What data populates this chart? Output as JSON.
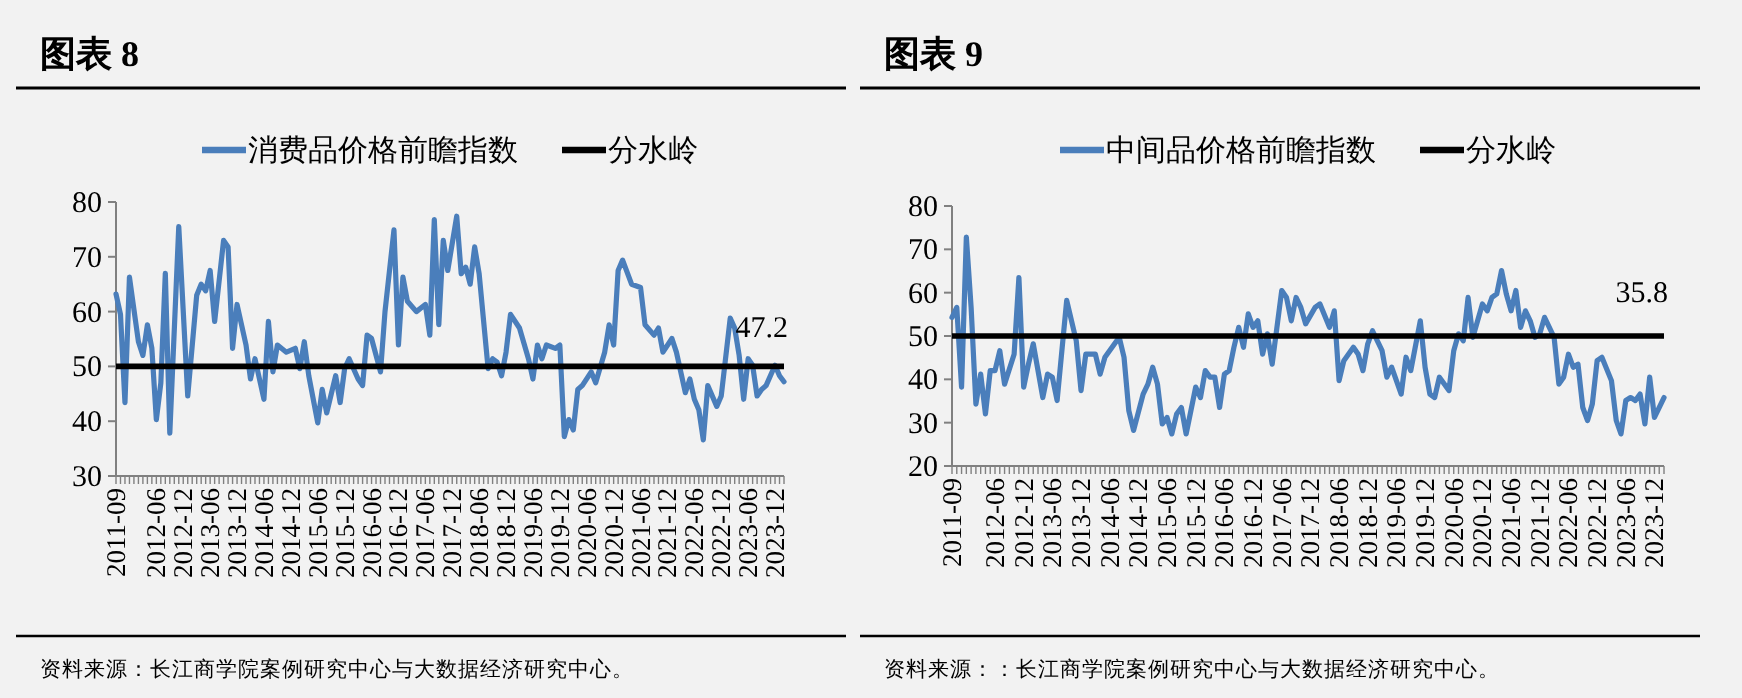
{
  "chart_data": [
    {
      "type": "line",
      "title": "图表 8",
      "legend": "top",
      "grid": false,
      "marker": "none",
      "line_style": "solid",
      "xlim": [
        "2011-09",
        "2024-02"
      ],
      "ylim": [
        30,
        80
      ],
      "yticks": [
        30,
        40,
        50,
        60,
        70,
        80
      ],
      "xticks": [
        {
          "value": "2011-09",
          "label": "2011-09"
        },
        {
          "value": "2012-06",
          "label": "2012-06"
        },
        {
          "value": "2012-12",
          "label": "2012-12"
        },
        {
          "value": "2013-06",
          "label": "2013-06"
        },
        {
          "value": "2013-12",
          "label": "2013-12"
        },
        {
          "value": "2014-06",
          "label": "2014-06"
        },
        {
          "value": "2014-12",
          "label": "2014-12"
        },
        {
          "value": "2015-06",
          "label": "2015-06"
        },
        {
          "value": "2015-12",
          "label": "2015-12"
        },
        {
          "value": "2016-06",
          "label": "2016-06"
        },
        {
          "value": "2016-12",
          "label": "2016-12"
        },
        {
          "value": "2017-06",
          "label": "2017-06"
        },
        {
          "value": "2017-12",
          "label": "2017-12"
        },
        {
          "value": "2018-06",
          "label": "2018-06"
        },
        {
          "value": "2018-12",
          "label": "2018-12"
        },
        {
          "value": "2019-06",
          "label": "2019-06"
        },
        {
          "value": "2019-12",
          "label": "2019-12"
        },
        {
          "value": "2020-06",
          "label": "2020-06"
        },
        {
          "value": "2020-12",
          "label": "2020-12"
        },
        {
          "value": "2021-06",
          "label": "2021-06"
        },
        {
          "value": "2021-12",
          "label": "2021-12"
        },
        {
          "value": "2022-06",
          "label": "2022-06"
        },
        {
          "value": "2022-12",
          "label": "2022-12"
        },
        {
          "value": "2023-06",
          "label": "2023-06"
        },
        {
          "value": "2023-12",
          "label": "2023-12"
        }
      ],
      "series": [
        {
          "name": "消费品价格前瞻指数",
          "color": "#4a7ebb",
          "x": [
            "2011-09",
            "2011-10",
            "2011-11",
            "2011-12",
            "2012-02",
            "2012-03",
            "2012-04",
            "2012-05",
            "2012-06",
            "2012-07",
            "2012-08",
            "2012-09",
            "2012-11",
            "2013-01",
            "2013-03",
            "2013-04",
            "2013-05",
            "2013-06",
            "2013-07",
            "2013-09",
            "2013-10",
            "2013-11",
            "2013-12",
            "2014-02",
            "2014-03",
            "2014-04",
            "2014-06",
            "2014-07",
            "2014-08",
            "2014-09",
            "2014-11",
            "2015-01",
            "2015-02",
            "2015-03",
            "2015-04",
            "2015-06",
            "2015-07",
            "2015-08",
            "2015-10",
            "2015-11",
            "2015-12",
            "2016-01",
            "2016-03",
            "2016-04",
            "2016-05",
            "2016-06",
            "2016-08",
            "2016-09",
            "2016-11",
            "2016-12",
            "2017-01",
            "2017-02",
            "2017-04",
            "2017-06",
            "2017-07",
            "2017-08",
            "2017-09",
            "2017-10",
            "2017-11",
            "2018-01",
            "2018-02",
            "2018-03",
            "2018-04",
            "2018-05",
            "2018-06",
            "2018-08",
            "2018-09",
            "2018-10",
            "2018-11",
            "2018-12",
            "2019-01",
            "2019-03",
            "2019-05",
            "2019-06",
            "2019-07",
            "2019-08",
            "2019-09",
            "2019-11",
            "2019-12",
            "2020-01",
            "2020-02",
            "2020-03",
            "2020-04",
            "2020-05",
            "2020-07",
            "2020-08",
            "2020-10",
            "2020-11",
            "2020-12",
            "2021-01",
            "2021-02",
            "2021-04",
            "2021-06",
            "2021-07",
            "2021-09",
            "2021-10",
            "2021-11",
            "2022-01",
            "2022-02",
            "2022-04",
            "2022-05",
            "2022-06",
            "2022-07",
            "2022-08",
            "2022-09",
            "2022-11",
            "2022-12",
            "2023-02",
            "2023-03",
            "2023-04",
            "2023-05",
            "2023-06",
            "2023-07",
            "2023-08",
            "2023-09",
            "2023-10",
            "2023-12",
            "2024-01",
            "2024-02"
          ],
          "values": [
            63.2,
            59.5,
            43.4,
            66.3,
            54.5,
            52,
            57.6,
            53.3,
            40.3,
            47,
            67,
            37.8,
            75.5,
            44.6,
            63,
            65,
            63.8,
            67.5,
            58.2,
            73,
            71.8,
            53.3,
            61.3,
            53.9,
            47.7,
            51.4,
            44,
            58.2,
            49,
            53.9,
            52.6,
            53.3,
            49.6,
            54.5,
            48.3,
            39.7,
            45.8,
            41.5,
            48.3,
            43.4,
            49.6,
            51.4,
            47.7,
            46.5,
            55.7,
            55.1,
            49,
            60,
            74.9,
            53.9,
            66.3,
            61.9,
            60,
            61.3,
            55.7,
            76.8,
            57.6,
            73,
            67.5,
            77.4,
            66.9,
            68.1,
            65,
            71.8,
            66.9,
            49.6,
            51.4,
            50.8,
            48.3,
            52.6,
            59.5,
            57,
            51.4,
            47.7,
            53.9,
            51.4,
            53.9,
            53.3,
            53.9,
            37.2,
            40.3,
            38.4,
            45.8,
            46.5,
            49,
            47,
            52.6,
            57.6,
            53.9,
            67.5,
            69.4,
            65,
            64.4,
            57.6,
            55.7,
            57,
            52.6,
            55.1,
            52.6,
            45.2,
            47.7,
            44,
            42.1,
            36.6,
            46.5,
            42.7,
            44.6,
            58.8,
            57,
            52,
            44,
            51.4,
            50.2,
            44.6,
            45.8,
            46.5,
            50.2,
            48.3,
            47.2
          ]
        }
      ],
      "ref_lines": [
        {
          "axis": "y",
          "value": 50,
          "label": "分水岭",
          "color": "#000000"
        }
      ],
      "annotations": [
        {
          "text": "47.2",
          "x": "2024-02",
          "y": 47.2
        },
        "资料来源：长江商学院案例研究中心与大数据经济研究中心。"
      ]
    },
    {
      "type": "line",
      "title": "图表 9",
      "legend": "top",
      "grid": false,
      "marker": "none",
      "line_style": "solid",
      "xlim": [
        "2011-09",
        "2024-02"
      ],
      "ylim": [
        20,
        80
      ],
      "yticks": [
        20,
        30,
        40,
        50,
        60,
        70,
        80
      ],
      "xticks": [
        {
          "value": "2011-09",
          "label": "2011-09"
        },
        {
          "value": "2012-06",
          "label": "2012-06"
        },
        {
          "value": "2012-12",
          "label": "2012-12"
        },
        {
          "value": "2013-06",
          "label": "2013-06"
        },
        {
          "value": "2013-12",
          "label": "2013-12"
        },
        {
          "value": "2014-06",
          "label": "2014-06"
        },
        {
          "value": "2014-12",
          "label": "2014-12"
        },
        {
          "value": "2015-06",
          "label": "2015-06"
        },
        {
          "value": "2015-12",
          "label": "2015-12"
        },
        {
          "value": "2016-06",
          "label": "2016-06"
        },
        {
          "value": "2016-12",
          "label": "2016-12"
        },
        {
          "value": "2017-06",
          "label": "2017-06"
        },
        {
          "value": "2017-12",
          "label": "2017-12"
        },
        {
          "value": "2018-06",
          "label": "2018-06"
        },
        {
          "value": "2018-12",
          "label": "2018-12"
        },
        {
          "value": "2019-06",
          "label": "2019-06"
        },
        {
          "value": "2019-12",
          "label": "2019-12"
        },
        {
          "value": "2020-06",
          "label": "2020-06"
        },
        {
          "value": "2020-12",
          "label": "2020-12"
        },
        {
          "value": "2021-06",
          "label": "2021-06"
        },
        {
          "value": "2021-12",
          "label": "2021-12"
        },
        {
          "value": "2022-06",
          "label": "2022-06"
        },
        {
          "value": "2022-12",
          "label": "2022-12"
        },
        {
          "value": "2023-06",
          "label": "2023-06"
        },
        {
          "value": "2023-12",
          "label": "2023-12"
        }
      ],
      "series": [
        {
          "name": "中间品价格前瞻指数",
          "color": "#4a7ebb",
          "x": [
            "2011-09",
            "2011-10",
            "2011-11",
            "2011-12",
            "2012-01",
            "2012-02",
            "2012-03",
            "2012-04",
            "2012-05",
            "2012-06",
            "2012-07",
            "2012-08",
            "2012-10",
            "2012-11",
            "2012-12",
            "2013-01",
            "2013-02",
            "2013-04",
            "2013-05",
            "2013-06",
            "2013-07",
            "2013-09",
            "2013-11",
            "2013-12",
            "2014-01",
            "2014-03",
            "2014-04",
            "2014-05",
            "2014-08",
            "2014-09",
            "2014-10",
            "2014-11",
            "2015-01",
            "2015-02",
            "2015-03",
            "2015-04",
            "2015-05",
            "2015-06",
            "2015-07",
            "2015-08",
            "2015-09",
            "2015-10",
            "2015-12",
            "2016-01",
            "2016-02",
            "2016-03",
            "2016-04",
            "2016-05",
            "2016-06",
            "2016-07",
            "2016-08",
            "2016-09",
            "2016-10",
            "2016-11",
            "2016-12",
            "2017-01",
            "2017-02",
            "2017-03",
            "2017-04",
            "2017-06",
            "2017-07",
            "2017-08",
            "2017-09",
            "2017-10",
            "2017-11",
            "2018-01",
            "2018-02",
            "2018-04",
            "2018-05",
            "2018-06",
            "2018-07",
            "2018-09",
            "2018-10",
            "2018-11",
            "2018-12",
            "2019-01",
            "2019-03",
            "2019-04",
            "2019-05",
            "2019-07",
            "2019-08",
            "2019-09",
            "2019-11",
            "2019-12",
            "2020-01",
            "2020-02",
            "2020-03",
            "2020-05",
            "2020-06",
            "2020-07",
            "2020-08",
            "2020-09",
            "2020-10",
            "2020-12",
            "2021-01",
            "2021-02",
            "2021-03",
            "2021-04",
            "2021-05",
            "2021-06",
            "2021-07",
            "2021-08",
            "2021-09",
            "2021-10",
            "2021-11",
            "2021-12",
            "2022-01",
            "2022-03",
            "2022-04",
            "2022-05",
            "2022-06",
            "2022-07",
            "2022-08",
            "2022-09",
            "2022-10",
            "2022-11",
            "2022-12",
            "2023-01",
            "2023-03",
            "2023-04",
            "2023-05",
            "2023-06",
            "2023-07",
            "2023-08",
            "2023-09",
            "2023-10",
            "2023-11",
            "2023-12",
            "2024-02"
          ],
          "values": [
            54.3,
            56.6,
            38.2,
            72.8,
            56.6,
            34.3,
            41.2,
            32,
            42,
            42,
            46.6,
            38.9,
            45.8,
            63.5,
            38.2,
            43.5,
            48.2,
            35.8,
            41.2,
            40.5,
            35.1,
            58.2,
            48.9,
            37.4,
            45.8,
            45.8,
            41.2,
            45.1,
            49.7,
            45.1,
            32.8,
            28.2,
            36.6,
            38.9,
            42.8,
            38.9,
            29.7,
            31.2,
            27.4,
            32,
            33.5,
            27.4,
            38.2,
            35.8,
            42,
            40.5,
            40.5,
            33.5,
            41.2,
            42,
            47.4,
            52,
            47.4,
            55.1,
            52,
            53.5,
            45.8,
            50.5,
            43.5,
            60.5,
            58.9,
            53.5,
            58.9,
            56.6,
            52.8,
            56.6,
            57.4,
            52,
            55.8,
            39.7,
            44.3,
            47.4,
            45.8,
            42,
            48.2,
            51.2,
            46.6,
            40.5,
            42.8,
            36.6,
            45.1,
            42,
            53.5,
            42.8,
            36.6,
            35.8,
            40.5,
            37.4,
            46.6,
            50.5,
            48.9,
            58.9,
            49.7,
            57.4,
            55.8,
            58.9,
            59.7,
            65.1,
            59.7,
            55.8,
            60.5,
            52,
            55.8,
            53.5,
            49.7,
            50.5,
            54.3,
            49.7,
            38.9,
            40.5,
            45.8,
            42.8,
            43.5,
            33.5,
            30.5,
            34.3,
            44.3,
            45.1,
            39.7,
            30.5,
            27.4,
            35.1,
            35.8,
            35.1,
            36.6,
            29.7,
            40.5,
            31.2,
            35.8
          ]
        }
      ],
      "ref_lines": [
        {
          "axis": "y",
          "value": 50,
          "label": "分水岭",
          "color": "#000000"
        }
      ],
      "annotations": [
        {
          "text": "35.8",
          "x": "2024-02",
          "y": 35.8
        },
        "资料来源：：长江商学院案例研究中心与大数据经济研究中心。"
      ]
    }
  ]
}
